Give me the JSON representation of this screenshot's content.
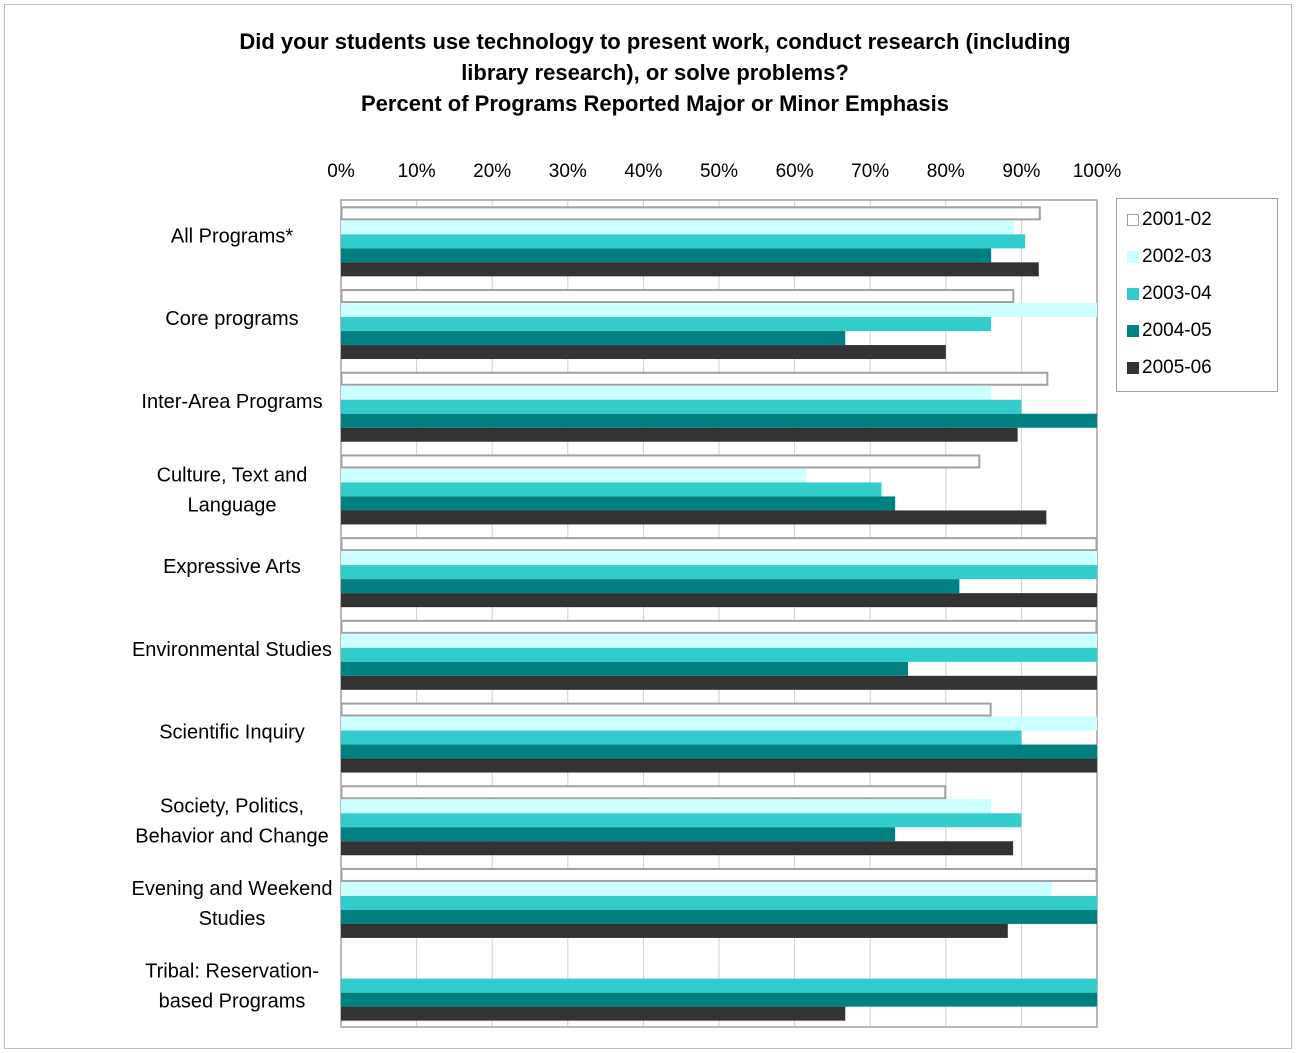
{
  "chart_data": {
    "type": "bar",
    "orientation": "horizontal",
    "title_lines": [
      "Did your students use technology to present work, conduct research (including",
      "library research), or solve problems?",
      "Percent of Programs Reported Major or Minor Emphasis"
    ],
    "xlim": [
      0,
      100
    ],
    "x_ticks": [
      "0%",
      "10%",
      "20%",
      "30%",
      "40%",
      "50%",
      "60%",
      "70%",
      "80%",
      "90%",
      "100%"
    ],
    "x_axis_position": "top",
    "grid": true,
    "legend_position": "right",
    "categories": [
      [
        "All Programs*"
      ],
      [
        "Core programs"
      ],
      [
        "Inter-Area Programs"
      ],
      [
        "Culture, Text and",
        "Language"
      ],
      [
        "Expressive Arts"
      ],
      [
        "Environmental Studies"
      ],
      [
        "Scientific Inquiry"
      ],
      [
        "Society, Politics,",
        "Behavior and Change"
      ],
      [
        "Evening and Weekend",
        "Studies"
      ],
      [
        "Tribal: Reservation-",
        "based Programs"
      ]
    ],
    "series": [
      {
        "name": "2001-02",
        "color": "#ffffff",
        "stroke": "#a0a0a0",
        "values": [
          92.5,
          89,
          93.5,
          84.5,
          100,
          100,
          86,
          80,
          100,
          null
        ]
      },
      {
        "name": "2002-03",
        "color": "#ccffff",
        "stroke": "none",
        "values": [
          89,
          100,
          86,
          61.5,
          100,
          100,
          100,
          86,
          94,
          null
        ]
      },
      {
        "name": "2003-04",
        "color": "#33cccc",
        "stroke": "none",
        "values": [
          90.5,
          86,
          90,
          71.5,
          100,
          100,
          90,
          90,
          100,
          100
        ]
      },
      {
        "name": "2004-05",
        "color": "#008080",
        "stroke": "none",
        "values": [
          86,
          66.7,
          100,
          73.3,
          81.8,
          75,
          100,
          73.3,
          100,
          100
        ]
      },
      {
        "name": "2005-06",
        "color": "#333333",
        "stroke": "none",
        "values": [
          92.3,
          80,
          89.5,
          93.3,
          100,
          100,
          100,
          88.9,
          88.2,
          66.7
        ]
      }
    ]
  }
}
